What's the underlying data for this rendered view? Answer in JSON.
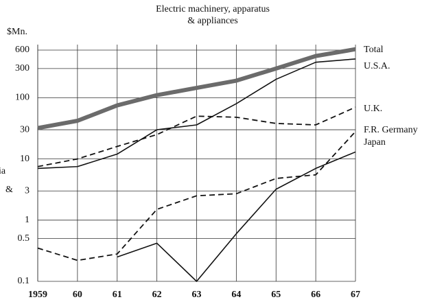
{
  "chart_data": {
    "type": "line",
    "title": [
      "Electric machinery, apparatus",
      "& appliances"
    ],
    "y_label": "$Mn.",
    "fragments": [
      "ia",
      "&"
    ],
    "categories": [
      "1959",
      "60",
      "61",
      "62",
      "63",
      "64",
      "65",
      "66",
      "67"
    ],
    "series": [
      {
        "name": "Total",
        "color": "#6b6b6b",
        "width": 6,
        "dash": false,
        "values": [
          32,
          42,
          75,
          110,
          145,
          190,
          300,
          480,
          620
        ]
      },
      {
        "name": "U.S.A.",
        "color": "#111111",
        "width": 1.6,
        "dash": false,
        "values": [
          7,
          7.5,
          12,
          30,
          36,
          80,
          200,
          380,
          430
        ]
      },
      {
        "name": "U.K.",
        "color": "#111111",
        "width": 1.8,
        "dash": true,
        "values": [
          7.5,
          10,
          16,
          25,
          50,
          48,
          38,
          36,
          70
        ]
      },
      {
        "name": "F.R. Germany",
        "color": "#111111",
        "width": 1.8,
        "dash": true,
        "values": [
          0.35,
          0.22,
          0.28,
          1.5,
          2.5,
          2.7,
          4.8,
          5.5,
          28
        ]
      },
      {
        "name": "Japan",
        "color": "#111111",
        "width": 1.6,
        "dash": false,
        "values": [
          null,
          null,
          0.25,
          0.42,
          0.1,
          0.6,
          3.2,
          7,
          13
        ]
      }
    ],
    "ylim": [
      0.1,
      600
    ],
    "yticks": [
      600,
      300,
      100,
      30,
      10,
      3,
      1,
      0.5,
      0.1
    ],
    "log_y": true,
    "grid": true
  }
}
